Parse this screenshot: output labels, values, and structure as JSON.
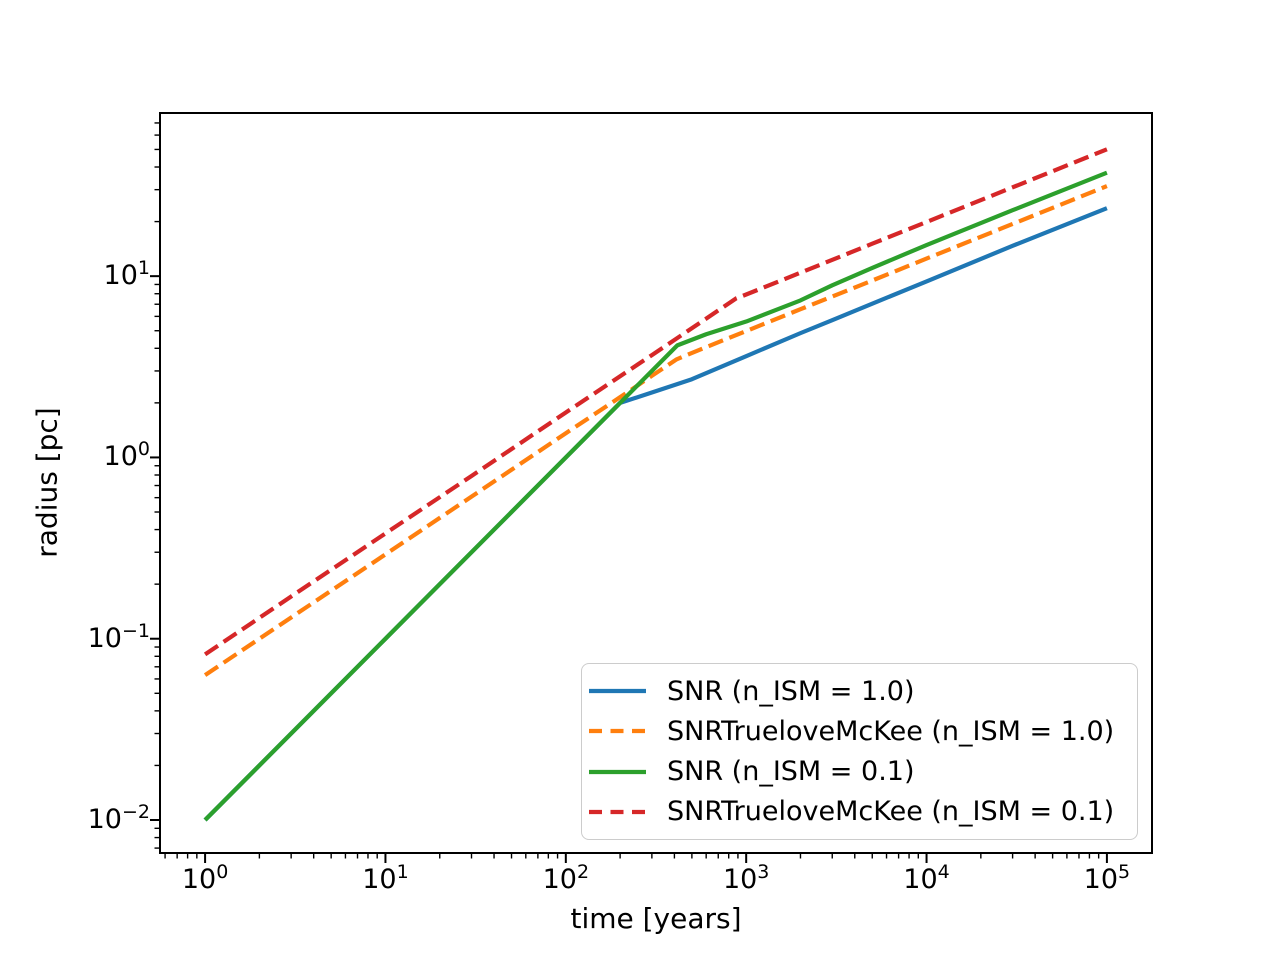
{
  "chart_data": {
    "type": "line",
    "title": "",
    "xlabel": "time [years]",
    "ylabel": "radius [pc]",
    "xscale": "log",
    "yscale": "log",
    "xlim_log": [
      -0.25,
      5.25
    ],
    "ylim_log": [
      -2.182,
      1.9
    ],
    "grid": false,
    "legend_position": "lower right",
    "frame_color": "#000000",
    "legend_border_color": "#cccccc",
    "x_ticks": [
      {
        "base": "10",
        "exp": "0",
        "value": 1
      },
      {
        "base": "10",
        "exp": "1",
        "value": 10
      },
      {
        "base": "10",
        "exp": "2",
        "value": 100
      },
      {
        "base": "10",
        "exp": "3",
        "value": 1000
      },
      {
        "base": "10",
        "exp": "4",
        "value": 10000
      },
      {
        "base": "10",
        "exp": "5",
        "value": 100000
      }
    ],
    "y_ticks": [
      {
        "base": "10",
        "exp": "1",
        "value": 10
      },
      {
        "base": "10",
        "exp": "0",
        "value": 1
      },
      {
        "base": "10",
        "exp": "−1",
        "value": 0.1
      },
      {
        "base": "10",
        "exp": "−2",
        "value": 0.01
      }
    ],
    "series": [
      {
        "name": "SNR (n_ISM = 1.0)",
        "color": "#1f77b4",
        "style": "solid",
        "points": [
          [
            1,
            0.01
          ],
          [
            10,
            0.1
          ],
          [
            50,
            0.5
          ],
          [
            200,
            2.0
          ],
          [
            300,
            2.28
          ],
          [
            500,
            2.7
          ],
          [
            1000,
            3.62
          ],
          [
            2000,
            4.85
          ],
          [
            3000,
            5.72
          ],
          [
            5000,
            7.05
          ],
          [
            10000,
            9.35
          ],
          [
            30000,
            14.7
          ],
          [
            100000,
            23.7
          ]
        ]
      },
      {
        "name": "SNRTrueloveMcKee (n_ISM = 1.0)",
        "color": "#ff7f0e",
        "style": "dashed",
        "points": [
          [
            1,
            0.063
          ],
          [
            3,
            0.131
          ],
          [
            10,
            0.292
          ],
          [
            30,
            0.608
          ],
          [
            100,
            1.36
          ],
          [
            200,
            2.15
          ],
          [
            300,
            2.82
          ],
          [
            412,
            3.48
          ],
          [
            600,
            4.06
          ],
          [
            1000,
            4.98
          ],
          [
            2000,
            6.57
          ],
          [
            5000,
            9.46
          ],
          [
            10000,
            12.5
          ],
          [
            30000,
            19.4
          ],
          [
            100000,
            31.4
          ]
        ]
      },
      {
        "name": "SNR (n_ISM = 0.1)",
        "color": "#2ca02c",
        "style": "solid",
        "points": [
          [
            1,
            0.01
          ],
          [
            10,
            0.1
          ],
          [
            50,
            0.5
          ],
          [
            200,
            2.0
          ],
          [
            415,
            4.15
          ],
          [
            600,
            4.78
          ],
          [
            1000,
            5.62
          ],
          [
            2000,
            7.35
          ],
          [
            3000,
            8.9
          ],
          [
            5000,
            11.1
          ],
          [
            10000,
            14.85
          ],
          [
            30000,
            23.1
          ],
          [
            100000,
            37.2
          ]
        ]
      },
      {
        "name": "SNRTrueloveMcKee (n_ISM = 0.1)",
        "color": "#d62728",
        "style": "dashed",
        "points": [
          [
            1,
            0.082
          ],
          [
            3,
            0.171
          ],
          [
            10,
            0.381
          ],
          [
            30,
            0.79
          ],
          [
            100,
            1.77
          ],
          [
            300,
            3.67
          ],
          [
            600,
            5.83
          ],
          [
            880,
            7.54
          ],
          [
            1000,
            7.92
          ],
          [
            2000,
            10.45
          ],
          [
            5000,
            15.1
          ],
          [
            10000,
            19.9
          ],
          [
            30000,
            30.9
          ],
          [
            100000,
            50.1
          ]
        ]
      }
    ]
  }
}
